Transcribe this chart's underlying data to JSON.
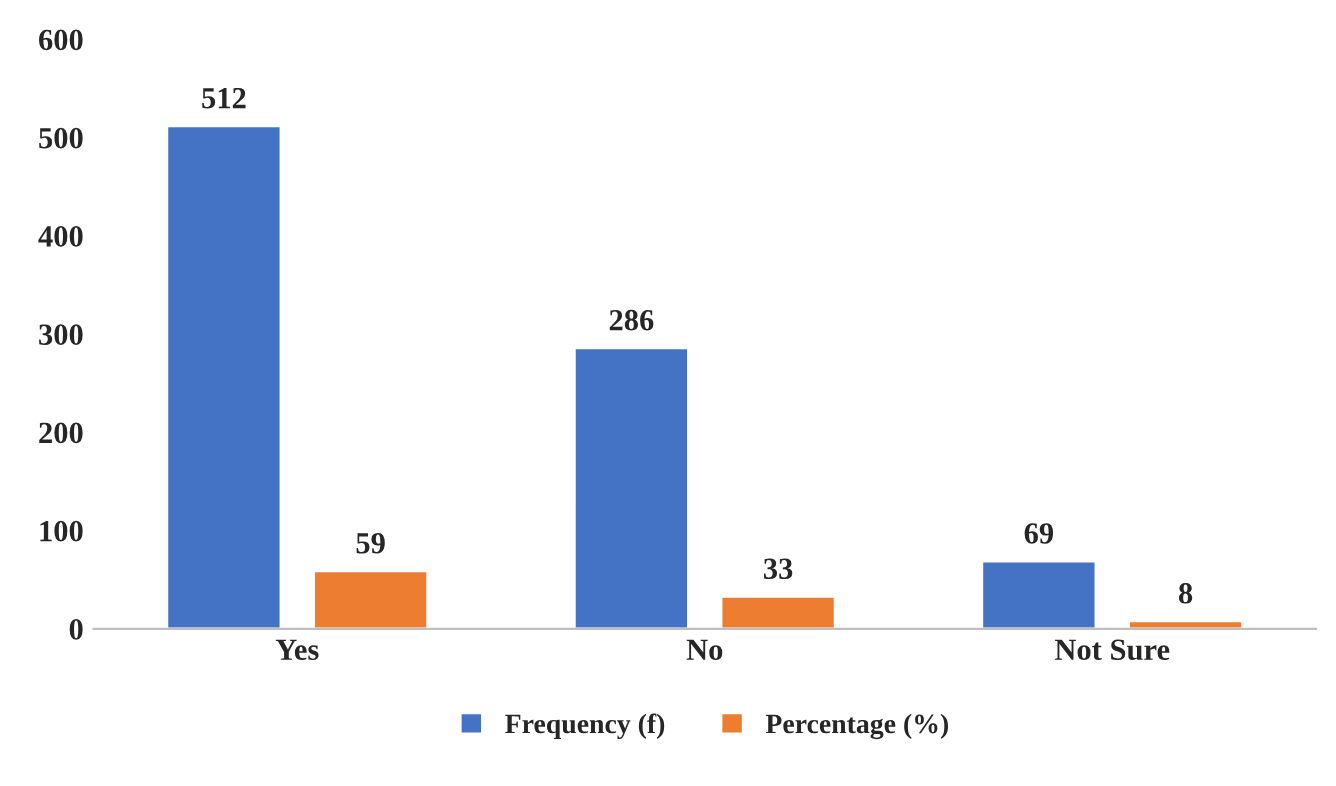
{
  "chart_data": {
    "type": "bar",
    "categories": [
      "Yes",
      "No",
      "Not Sure"
    ],
    "series": [
      {
        "name": "Frequency (f)",
        "color": "#4472c4",
        "values": [
          512,
          286,
          69
        ]
      },
      {
        "name": "Percentage (%)",
        "color": "#ed7d31",
        "values": [
          59,
          33,
          8
        ]
      }
    ],
    "ylim": [
      0,
      600
    ],
    "yticks": [
      0,
      100,
      200,
      300,
      400,
      500,
      600
    ],
    "grid": false,
    "legend": "bottom",
    "data_labels": true
  }
}
